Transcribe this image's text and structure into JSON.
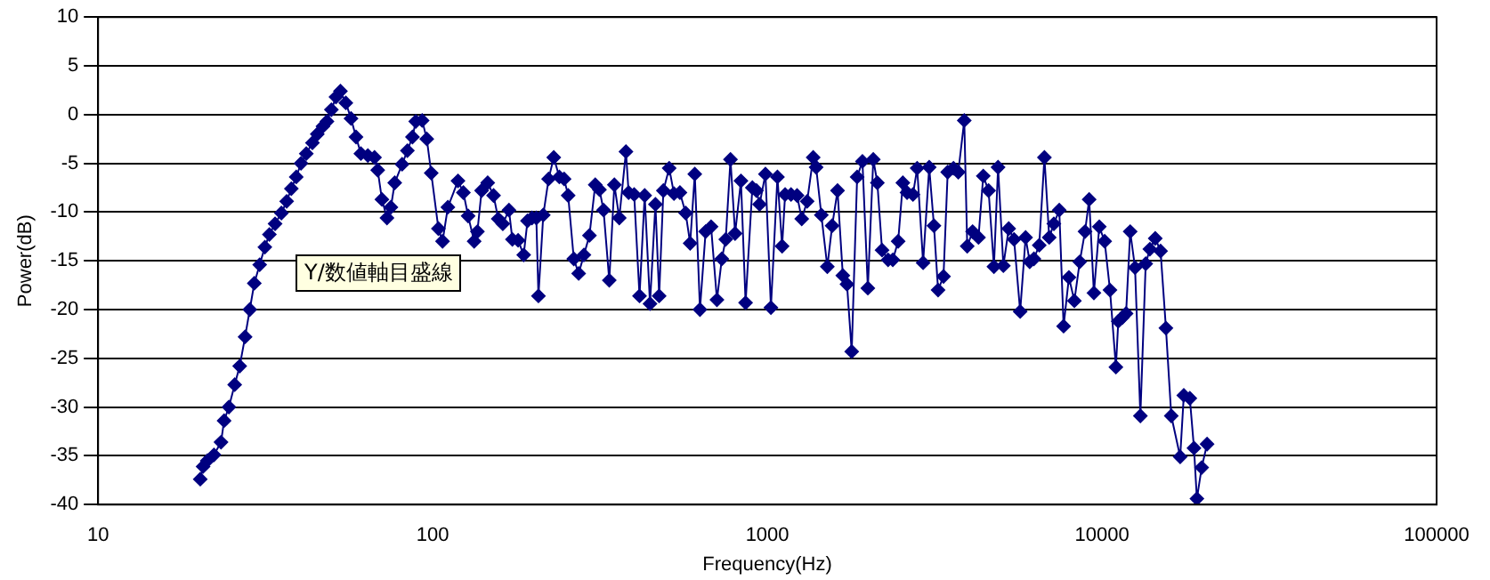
{
  "chart_data": {
    "type": "line",
    "xlabel": "Frequency(Hz)",
    "ylabel": "Power(dB)",
    "log": "x",
    "grid": "y",
    "marker": "diamond",
    "line_style": "solid",
    "xlim": [
      10,
      100000
    ],
    "xticks": [
      10,
      100,
      1000,
      10000,
      100000
    ],
    "ylim": [
      -40,
      10
    ],
    "yticks": [
      -40,
      -35,
      -30,
      -25,
      -20,
      -15,
      -10,
      -5,
      0,
      5,
      10
    ],
    "annotations": [
      "Y/数値軸目盛線"
    ],
    "series": [
      {
        "color": "#000080",
        "x": [
          20.2,
          20.6,
          21.2,
          22.2,
          23.3,
          23.8,
          24.6,
          25.6,
          26.5,
          27.5,
          28.4,
          29.3,
          30.4,
          31.5,
          32.5,
          33.8,
          35.3,
          36.6,
          37.8,
          39.1,
          40.4,
          41.9,
          43.7,
          45.2,
          47,
          48.3,
          49.8,
          51.4,
          53,
          55,
          57,
          59,
          61,
          64,
          67,
          68.5,
          70.5,
          73,
          75,
          77,
          81,
          84,
          87,
          89,
          93,
          96,
          99,
          104,
          107,
          111,
          119,
          123.5,
          127.6,
          133,
          136,
          140,
          146,
          152,
          157,
          162,
          169,
          173,
          180,
          187,
          192,
          198,
          204,
          207,
          214,
          222,
          230,
          239,
          247,
          254,
          264,
          273,
          283,
          294,
          306,
          315,
          324,
          337,
          349,
          361,
          378,
          385,
          400,
          415,
          430,
          446,
          463,
          475,
          489,
          509,
          526,
          548,
          570,
          588,
          607,
          629,
          654,
          679,
          707,
          731,
          751,
          776,
          801,
          834,
          861,
          902,
          928,
          948,
          987,
          1025,
          1072,
          1107,
          1130,
          1177,
          1227,
          1267,
          1315,
          1371,
          1399,
          1450,
          1511,
          1562,
          1621,
          1681,
          1730,
          1787,
          1855,
          1924,
          1997,
          2073,
          2132,
          2202,
          2295,
          2371,
          2460,
          2541,
          2615,
          2724,
          2804,
          2921,
          3046,
          3147,
          3238,
          3361,
          3459,
          3600,
          3721,
          3877,
          3957,
          4106,
          4276,
          4418,
          4583,
          4755,
          4892,
          5074,
          5264,
          5461,
          5696,
          5913,
          6082,
          6260,
          6495,
          6730,
          6956,
          7182,
          7454,
          7680,
          7966,
          8270,
          8581,
          8900,
          9157,
          9460,
          9816,
          10188,
          10568,
          11007,
          11189,
          11516,
          11804,
          12145,
          12555,
          13025,
          13511,
          13905,
          14429,
          14967,
          15529,
          16113,
          17129,
          17562,
          18305,
          18836,
          19215,
          19860,
          20611
        ],
        "values": [
          -37.4,
          -36.1,
          -35.5,
          -34.9,
          -33.6,
          -31.4,
          -30,
          -27.7,
          -25.8,
          -22.8,
          -20,
          -17.3,
          -15.4,
          -13.6,
          -12.3,
          -11.2,
          -10.1,
          -8.9,
          -7.6,
          -6.4,
          -5,
          -4,
          -2.9,
          -2,
          -1.2,
          -0.7,
          0.5,
          1.8,
          2.4,
          1.2,
          -0.4,
          -2.3,
          -4,
          -4.2,
          -4.4,
          -5.7,
          -8.7,
          -10.6,
          -9.5,
          -7,
          -5.1,
          -3.7,
          -2.3,
          -0.7,
          -0.6,
          -2.5,
          -6,
          -11.7,
          -13,
          -9.5,
          -6.8,
          -8,
          -10.4,
          -13,
          -12,
          -7.8,
          -7,
          -8.3,
          -10.7,
          -11.2,
          -9.8,
          -12.8,
          -12.9,
          -14.4,
          -10.9,
          -10.6,
          -10.6,
          -18.6,
          -10.3,
          -6.6,
          -4.4,
          -6.4,
          -6.6,
          -8.3,
          -14.8,
          -16.3,
          -14.4,
          -12.4,
          -7.2,
          -7.7,
          -9.8,
          -17,
          -7.2,
          -10.6,
          -3.8,
          -8,
          -8.2,
          -18.6,
          -8.3,
          -19.4,
          -9.2,
          -18.6,
          -7.8,
          -5.5,
          -8.1,
          -8,
          -10.1,
          -13.2,
          -6.1,
          -20,
          -12,
          -11.5,
          -19,
          -14.8,
          -12.8,
          -4.6,
          -12.2,
          -6.8,
          -19.3,
          -7.5,
          -7.8,
          -9.2,
          -6.1,
          -19.8,
          -6.4,
          -13.5,
          -8.2,
          -8.2,
          -8.3,
          -10.7,
          -8.9,
          -4.4,
          -5.4,
          -10.3,
          -15.6,
          -11.4,
          -7.8,
          -16.5,
          -17.4,
          -24.3,
          -6.4,
          -4.8,
          -17.8,
          -4.6,
          -7,
          -13.9,
          -14.9,
          -14.9,
          -13,
          -7,
          -8,
          -8.2,
          -5.5,
          -15.2,
          -5.4,
          -11.4,
          -18,
          -16.6,
          -5.9,
          -5.5,
          -5.9,
          -0.6,
          -13.5,
          -12,
          -12.6,
          -6.3,
          -7.8,
          -15.6,
          -5.4,
          -15.5,
          -11.7,
          -12.8,
          -20.2,
          -12.6,
          -15.1,
          -14.8,
          -13.4,
          -4.4,
          -12.6,
          -11.2,
          -9.8,
          -21.7,
          -16.7,
          -19.1,
          -15.1,
          -12,
          -8.7,
          -18.3,
          -11.5,
          -13,
          -18,
          -25.9,
          -21.2,
          -20.8,
          -20.4,
          -12,
          -15.7,
          -30.9,
          -15.3,
          -13.8,
          -12.7,
          -14,
          -21.9,
          -30.9,
          -35.1,
          -28.8,
          -29.1,
          -34.2,
          -39.4,
          -36.2,
          -33.8
        ]
      }
    ]
  }
}
